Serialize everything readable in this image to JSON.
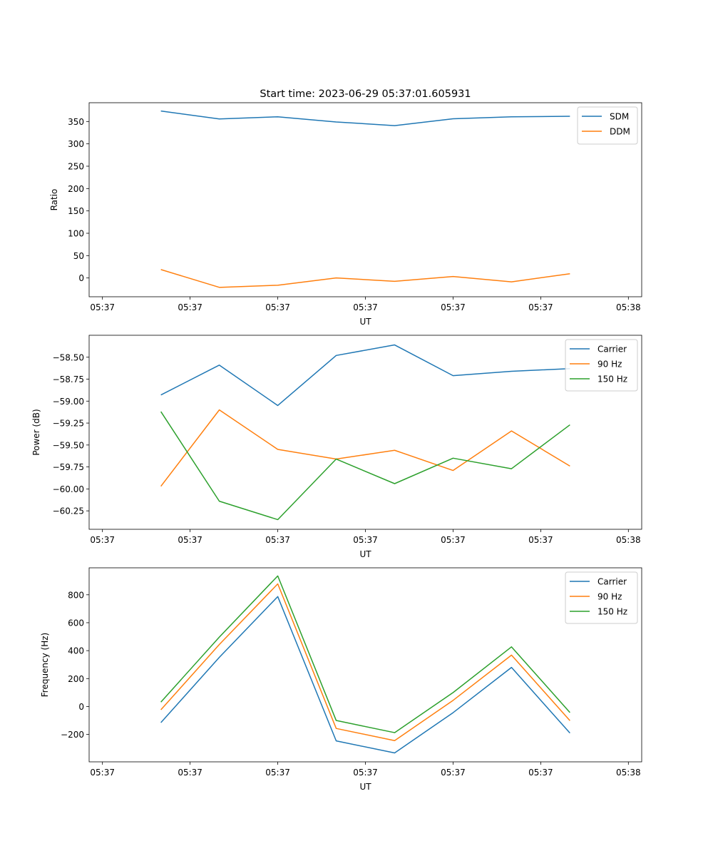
{
  "figure": {
    "title": "Start time: 2023-06-29 05:37:01.605931"
  },
  "chart_data": [
    {
      "type": "line",
      "xlabel": "UT",
      "ylabel": "Ratio",
      "x_tick_labels": [
        "05:37",
        "05:37",
        "05:37",
        "05:37",
        "05:37",
        "05:37",
        "05:38"
      ],
      "y_ticks": [
        0,
        50,
        100,
        150,
        200,
        250,
        300,
        350
      ],
      "y_tick_labels": [
        "0",
        "50",
        "100",
        "150",
        "200",
        "250",
        "300",
        "350"
      ],
      "ylim": [
        -42,
        392
      ],
      "xlim": [
        -0.228,
        9.228
      ],
      "legend_position": "upper right",
      "series": [
        {
          "name": "SDM",
          "color": "#1f77b4",
          "values": [
            373.4,
            355.7,
            360.5,
            349.0,
            340.8,
            356.1,
            360.5,
            361.6
          ]
        },
        {
          "name": "DDM",
          "color": "#ff7f0e",
          "values": [
            18.8,
            -21.0,
            -16.2,
            0.0,
            -7.4,
            3.2,
            -8.6,
            9.5
          ]
        }
      ]
    },
    {
      "type": "line",
      "xlabel": "UT",
      "ylabel": "Power (dB)",
      "x_tick_labels": [
        "05:37",
        "05:37",
        "05:37",
        "05:37",
        "05:37",
        "05:37",
        "05:38"
      ],
      "y_ticks": [
        -60.25,
        -60.0,
        -59.75,
        -59.5,
        -59.25,
        -59.0,
        -58.75,
        -58.5
      ],
      "y_tick_labels": [
        "−60.25",
        "−60.00",
        "−59.75",
        "−59.50",
        "−59.25",
        "−59.00",
        "−58.75",
        "−58.50"
      ],
      "ylim": [
        -60.46,
        -58.25
      ],
      "xlim": [
        -0.228,
        9.228
      ],
      "legend_position": "upper right",
      "series": [
        {
          "name": "Carrier",
          "color": "#1f77b4",
          "values": [
            -58.93,
            -58.59,
            -59.05,
            -58.48,
            -58.36,
            -58.71,
            -58.66,
            -58.63
          ]
        },
        {
          "name": "90 Hz",
          "color": "#ff7f0e",
          "values": [
            -59.97,
            -59.1,
            -59.55,
            -59.66,
            -59.56,
            -59.79,
            -59.34,
            -59.74
          ]
        },
        {
          "name": "150 Hz",
          "color": "#2ca02c",
          "values": [
            -59.12,
            -60.14,
            -60.35,
            -59.66,
            -59.94,
            -59.65,
            -59.77,
            -59.27
          ]
        }
      ]
    },
    {
      "type": "line",
      "xlabel": "UT",
      "ylabel": "Frequency (Hz)",
      "x_tick_labels": [
        "05:37",
        "05:37",
        "05:37",
        "05:37",
        "05:37",
        "05:37",
        "05:38"
      ],
      "y_ticks": [
        -200,
        0,
        200,
        400,
        600,
        800
      ],
      "y_tick_labels": [
        "−200",
        "0",
        "200",
        "400",
        "600",
        "800"
      ],
      "ylim": [
        -396,
        993
      ],
      "xlim": [
        -0.228,
        9.228
      ],
      "legend_position": "upper right",
      "series": [
        {
          "name": "Carrier",
          "color": "#1f77b4",
          "values": [
            -115,
            352,
            787,
            -246,
            -332,
            -44,
            280,
            -190
          ]
        },
        {
          "name": "90 Hz",
          "color": "#ff7f0e",
          "values": [
            -23,
            444,
            878,
            -157,
            -244,
            44,
            368,
            -101
          ]
        },
        {
          "name": "150 Hz",
          "color": "#2ca02c",
          "values": [
            32,
            497,
            935,
            -100,
            -187,
            100,
            427,
            -43
          ]
        }
      ]
    }
  ]
}
